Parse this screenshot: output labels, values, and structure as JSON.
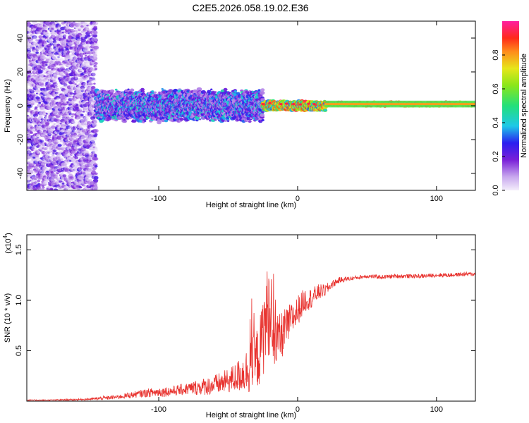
{
  "title": "C2E5.2026.058.19.02.E36",
  "chart_data": [
    {
      "type": "heatmap",
      "title": "C2E5.2026.058.19.02.E36",
      "xlabel": "Height of straight line (km)",
      "ylabel": "Frequency (Hz)",
      "xlim": [
        -195,
        128
      ],
      "ylim": [
        -50,
        50
      ],
      "xticks": [
        -100,
        0,
        100
      ],
      "yticks": [
        -40,
        -20,
        0,
        20,
        40
      ],
      "colorbar": {
        "label": "Normalized spectral amplitude",
        "range": [
          0,
          1
        ],
        "ticks": [
          0.0,
          0.2,
          0.4,
          0.6,
          0.8
        ],
        "tick_labels": [
          "0.0",
          "0.2",
          "0.4",
          "0.6",
          "0.8"
        ]
      },
      "description_regions": [
        {
          "x": [
            -195,
            -145
          ],
          "freq_spread": 50,
          "amplitude": [
            0.0,
            0.25
          ]
        },
        {
          "x": [
            -145,
            -25
          ],
          "freq_spread": 10,
          "amplitude": [
            0.1,
            0.45
          ]
        },
        {
          "x": [
            -25,
            20
          ],
          "freq_spread": 3,
          "amplitude": [
            0.3,
            0.95
          ]
        },
        {
          "x": [
            20,
            128
          ],
          "freq_spread": 1.5,
          "amplitude": [
            0.6,
            0.95
          ],
          "center_freq": 1
        }
      ]
    },
    {
      "type": "line",
      "title": "",
      "xlabel": "Height of straight line (km)",
      "ylabel": "SNR (10 * v/v)",
      "multiplier_label": "(x10",
      "multiplier_exp": "4",
      "multiplier_close": ")",
      "xlim": [
        -195,
        128
      ],
      "ylim": [
        0,
        1.65
      ],
      "xticks": [
        -100,
        0,
        100
      ],
      "yticks": [
        0.5,
        1.0,
        1.5
      ],
      "ytick_labels": [
        "0.5",
        "1.0",
        "1.5"
      ],
      "series": [
        {
          "name": "SNR",
          "color": "#e8322e",
          "x": [
            -195,
            -180,
            -160,
            -150,
            -140,
            -130,
            -120,
            -110,
            -100,
            -90,
            -80,
            -70,
            -60,
            -50,
            -45,
            -40,
            -35,
            -30,
            -27,
            -25,
            -23,
            -21,
            -20,
            -18,
            -15,
            -12,
            -10,
            -8,
            -5,
            -2,
            0,
            5,
            10,
            15,
            20,
            25,
            30,
            40,
            50,
            60,
            70,
            80,
            90,
            100,
            110,
            120,
            128
          ],
          "y": [
            0.01,
            0.01,
            0.015,
            0.02,
            0.03,
            0.04,
            0.06,
            0.08,
            0.09,
            0.1,
            0.12,
            0.14,
            0.16,
            0.2,
            0.23,
            0.27,
            0.32,
            0.4,
            0.5,
            0.65,
            0.8,
            0.9,
            0.85,
            0.55,
            0.6,
            0.62,
            0.7,
            0.72,
            0.8,
            0.85,
            0.9,
            1.0,
            1.02,
            1.08,
            1.1,
            1.16,
            1.2,
            1.22,
            1.24,
            1.23,
            1.24,
            1.24,
            1.24,
            1.25,
            1.25,
            1.26,
            1.26
          ],
          "noise_amp": [
            0.005,
            0.005,
            0.008,
            0.01,
            0.02,
            0.02,
            0.03,
            0.04,
            0.05,
            0.05,
            0.06,
            0.08,
            0.1,
            0.12,
            0.15,
            0.18,
            0.25,
            0.3,
            0.35,
            0.4,
            0.5,
            0.45,
            0.4,
            0.3,
            0.25,
            0.25,
            0.22,
            0.2,
            0.18,
            0.15,
            0.15,
            0.12,
            0.1,
            0.08,
            0.06,
            0.04,
            0.03,
            0.02,
            0.02,
            0.02,
            0.02,
            0.02,
            0.02,
            0.02,
            0.02,
            0.02,
            0.02
          ]
        }
      ]
    }
  ]
}
